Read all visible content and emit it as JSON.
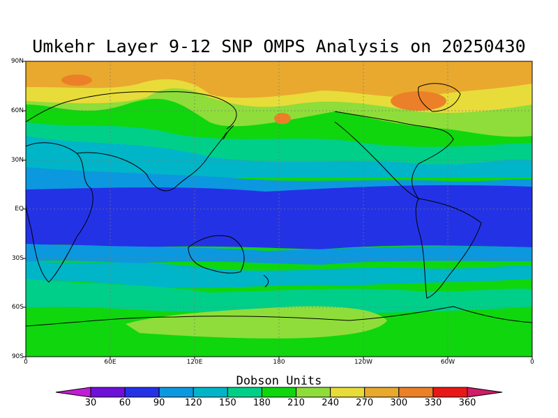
{
  "title": "Umkehr Layer 9-12 SNP OMPS Analysis on 20250430",
  "y_ticks": [
    "90N",
    "60N",
    "30N",
    "EQ",
    "30S",
    "60S",
    "90S"
  ],
  "x_ticks": [
    "0",
    "60E",
    "120E",
    "180",
    "120W",
    "60W",
    "0"
  ],
  "colorbar": {
    "label": "Dobson Units",
    "levels": [
      "30",
      "60",
      "90",
      "120",
      "150",
      "180",
      "210",
      "240",
      "270",
      "300",
      "330",
      "360"
    ],
    "colors": [
      "#c21dd6",
      "#6e10d8",
      "#2432e6",
      "#0c98de",
      "#00b5c8",
      "#00cf8a",
      "#10d60e",
      "#8fdd3a",
      "#e8dc3a",
      "#e9a92e",
      "#ec8028",
      "#e81818",
      "#d11c66"
    ]
  },
  "map": {
    "type": "contour-map",
    "projection": "equirectangular",
    "field": "column ozone, Umkehr layers 9-12",
    "lon_range": [
      0,
      360
    ],
    "lat_range": [
      -90,
      90
    ],
    "date": "20250430"
  }
}
